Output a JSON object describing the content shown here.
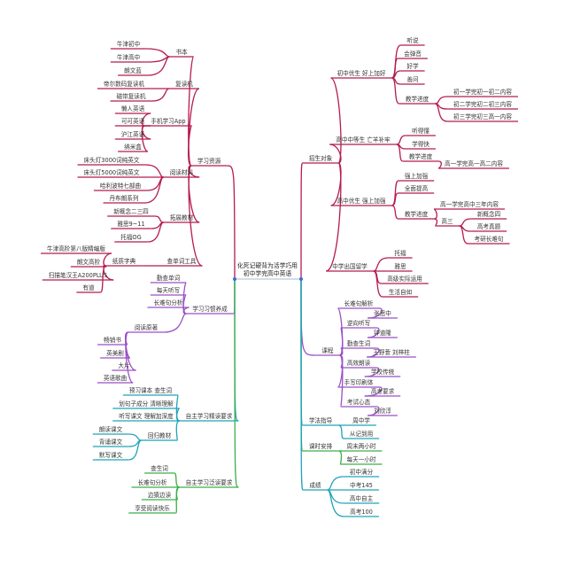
{
  "center": {
    "line1": "化死记硬背为活学巧用",
    "line2": "初中学完高中英语"
  },
  "colors": {
    "crimson": "#b51a52",
    "purple": "#9a4fc6",
    "cyan": "#1fa3b8",
    "green": "#3cae4a",
    "center_dot": "#3a6fd0"
  },
  "nodes": [
    {
      "id": "L1",
      "label": "学习资源",
      "parent": "c",
      "color": "crimson"
    },
    {
      "id": "L1a",
      "label": "书本",
      "parent": "L1",
      "color": "crimson"
    },
    {
      "id": "L1a1",
      "label": "牛津初中",
      "parent": "L1a",
      "color": "crimson"
    },
    {
      "id": "L1a2",
      "label": "牛津高中",
      "parent": "L1a",
      "color": "crimson"
    },
    {
      "id": "L1a3",
      "label": "朗文蓝",
      "parent": "L1a",
      "color": "crimson"
    },
    {
      "id": "L1b",
      "label": "复读机",
      "parent": "L1",
      "color": "crimson"
    },
    {
      "id": "L1b1",
      "label": "帝尔数码复读机",
      "parent": "L1b",
      "color": "crimson"
    },
    {
      "id": "L1b2",
      "label": "磁带复读机",
      "parent": "L1b",
      "color": "crimson"
    },
    {
      "id": "L1c",
      "label": "手机学习App",
      "parent": "L1",
      "color": "crimson"
    },
    {
      "id": "L1c1",
      "label": "懒人英语",
      "parent": "L1c",
      "color": "crimson"
    },
    {
      "id": "L1c2",
      "label": "可可英语",
      "parent": "L1c",
      "color": "crimson"
    },
    {
      "id": "L1c3",
      "label": "沪江英语",
      "parent": "L1c",
      "color": "crimson"
    },
    {
      "id": "L1c4",
      "label": "纳米盒",
      "parent": "L1c",
      "color": "crimson"
    },
    {
      "id": "L1d",
      "label": "阅读材料",
      "parent": "L1",
      "color": "crimson"
    },
    {
      "id": "L1d1",
      "label": "床头灯3000词纯英文",
      "parent": "L1d",
      "color": "crimson"
    },
    {
      "id": "L1d2",
      "label": "床头灯5000词纯英文",
      "parent": "L1d",
      "color": "crimson"
    },
    {
      "id": "L1d3",
      "label": "哈利波特七部曲",
      "parent": "L1d",
      "color": "crimson"
    },
    {
      "id": "L1d4",
      "label": "丹布朗系列",
      "parent": "L1d",
      "color": "crimson"
    },
    {
      "id": "L1e",
      "label": "拓展教材",
      "parent": "L1",
      "color": "crimson"
    },
    {
      "id": "L1e1",
      "label": "新概念二三四",
      "parent": "L1e",
      "color": "crimson"
    },
    {
      "id": "L1e2",
      "label": "雅思9~11",
      "parent": "L1e",
      "color": "crimson"
    },
    {
      "id": "L1e3",
      "label": "托福OG",
      "parent": "L1e",
      "color": "crimson"
    },
    {
      "id": "L1f",
      "label": "查单词工具",
      "parent": "L1",
      "color": "crimson"
    },
    {
      "id": "L1f1",
      "label": "纸质字典",
      "parent": "L1f",
      "color": "crimson"
    },
    {
      "id": "L1f11",
      "label": "牛津高阶第八版精编版",
      "parent": "L1f1",
      "color": "crimson"
    },
    {
      "id": "L1f12",
      "label": "朗文高阶",
      "parent": "L1f1",
      "color": "crimson"
    },
    {
      "id": "L1f13",
      "label": "扫描笔汉王A200PLUS",
      "parent": "L1f1",
      "color": "crimson"
    },
    {
      "id": "L1f14",
      "label": "有道",
      "parent": "L1f1",
      "color": "crimson"
    },
    {
      "id": "L2",
      "label": "学习习惯养成",
      "parent": "c",
      "color": "purple"
    },
    {
      "id": "L21",
      "label": "勤查单词",
      "parent": "L2",
      "color": "purple"
    },
    {
      "id": "L22",
      "label": "每天听写",
      "parent": "L2",
      "color": "purple"
    },
    {
      "id": "L23",
      "label": "长难句分析",
      "parent": "L2",
      "color": "purple"
    },
    {
      "id": "L24",
      "label": "阅读原著",
      "parent": "L2",
      "color": "purple"
    },
    {
      "id": "L241",
      "label": "畅销书",
      "parent": "L24",
      "color": "purple"
    },
    {
      "id": "L242",
      "label": "英美剧",
      "parent": "L24",
      "color": "purple"
    },
    {
      "id": "L243",
      "label": "大片",
      "parent": "L24",
      "color": "purple"
    },
    {
      "id": "L244",
      "label": "英语歌曲",
      "parent": "L24",
      "color": "purple"
    },
    {
      "id": "L3",
      "label": "自主学习精读要求",
      "parent": "c",
      "color": "cyan"
    },
    {
      "id": "L31",
      "label": "预习课本 查生词",
      "parent": "L3",
      "color": "cyan"
    },
    {
      "id": "L32",
      "label": "划句子成分 清晰理解",
      "parent": "L3",
      "color": "cyan"
    },
    {
      "id": "L33",
      "label": "听写课文 理解加深度",
      "parent": "L3",
      "color": "cyan"
    },
    {
      "id": "L34",
      "label": "回归教材",
      "parent": "L3",
      "color": "cyan"
    },
    {
      "id": "L341",
      "label": "朗读课文",
      "parent": "L34",
      "color": "cyan"
    },
    {
      "id": "L342",
      "label": "背诵课文",
      "parent": "L34",
      "color": "cyan"
    },
    {
      "id": "L343",
      "label": "默写课文",
      "parent": "L34",
      "color": "cyan"
    },
    {
      "id": "L4",
      "label": "自主学习泛读要求",
      "parent": "c",
      "color": "green"
    },
    {
      "id": "L41",
      "label": "查生词",
      "parent": "L4",
      "color": "green"
    },
    {
      "id": "L42",
      "label": "长难句分析",
      "parent": "L4",
      "color": "green"
    },
    {
      "id": "L43",
      "label": "边猜边读",
      "parent": "L4",
      "color": "green"
    },
    {
      "id": "L44",
      "label": "享受阅读快乐",
      "parent": "L4",
      "color": "green"
    },
    {
      "id": "R1",
      "label": "招生对象",
      "parent": "c",
      "color": "crimson"
    },
    {
      "id": "R1a",
      "label": "初中优生 好上加好",
      "parent": "R1",
      "color": "crimson"
    },
    {
      "id": "R1a1",
      "label": "听说",
      "parent": "R1a",
      "color": "crimson"
    },
    {
      "id": "R1a2",
      "label": "会弹音",
      "parent": "R1a",
      "color": "crimson"
    },
    {
      "id": "R1a3",
      "label": "好学",
      "parent": "R1a",
      "color": "crimson"
    },
    {
      "id": "R1a4",
      "label": "善问",
      "parent": "R1a",
      "color": "crimson"
    },
    {
      "id": "R1a5",
      "label": "教学进度",
      "parent": "R1a",
      "color": "crimson"
    },
    {
      "id": "R1a51",
      "label": "初一学完初一初二内容",
      "parent": "R1a5",
      "color": "crimson"
    },
    {
      "id": "R1a52",
      "label": "初二学完初二初三内容",
      "parent": "R1a5",
      "color": "crimson"
    },
    {
      "id": "R1a53",
      "label": "初三学完初三高一内容",
      "parent": "R1a5",
      "color": "crimson"
    },
    {
      "id": "R1b",
      "label": "高中中等生 亡羊补牢",
      "parent": "R1",
      "color": "crimson"
    },
    {
      "id": "R1b1",
      "label": "听得懂",
      "parent": "R1b",
      "color": "crimson"
    },
    {
      "id": "R1b2",
      "label": "学得快",
      "parent": "R1b",
      "color": "crimson"
    },
    {
      "id": "R1b3",
      "label": "教学进度",
      "parent": "R1b",
      "color": "crimson"
    },
    {
      "id": "R1b31",
      "label": "高一学完高一高二内容",
      "parent": "R1b3",
      "color": "crimson"
    },
    {
      "id": "R1c",
      "label": "高中优生 强上加强",
      "parent": "R1",
      "color": "crimson"
    },
    {
      "id": "R1c1",
      "label": "强上加强",
      "parent": "R1c",
      "color": "crimson"
    },
    {
      "id": "R1c2",
      "label": "全面提高",
      "parent": "R1c",
      "color": "crimson"
    },
    {
      "id": "R1c3",
      "label": "教学进度",
      "parent": "R1c",
      "color": "crimson"
    },
    {
      "id": "R1c31",
      "label": "高一学完高中三年内容",
      "parent": "R1c3",
      "color": "crimson"
    },
    {
      "id": "R1c32",
      "label": "高三",
      "parent": "R1c3",
      "color": "crimson"
    },
    {
      "id": "R1c321",
      "label": "新概念四",
      "parent": "R1c32",
      "color": "crimson"
    },
    {
      "id": "R1c322",
      "label": "高考真题",
      "parent": "R1c32",
      "color": "crimson"
    },
    {
      "id": "R1c323",
      "label": "考研长难句",
      "parent": "R1c32",
      "color": "crimson"
    },
    {
      "id": "R1d",
      "label": "中学出国留学",
      "parent": "R1",
      "color": "crimson"
    },
    {
      "id": "R1d1",
      "label": "托福",
      "parent": "R1d",
      "color": "crimson"
    },
    {
      "id": "R1d2",
      "label": "雅思",
      "parent": "R1d",
      "color": "crimson"
    },
    {
      "id": "R1d3",
      "label": "高级实际运用",
      "parent": "R1d",
      "color": "crimson"
    },
    {
      "id": "R1d4",
      "label": "生活自如",
      "parent": "R1d",
      "color": "crimson"
    },
    {
      "id": "R2",
      "label": "课程",
      "parent": "c",
      "color": "purple"
    },
    {
      "id": "R21",
      "label": "长难句解析",
      "parent": "R2",
      "color": "purple"
    },
    {
      "id": "R211",
      "label": "张思中",
      "parent": "R21",
      "color": "purple"
    },
    {
      "id": "R22",
      "label": "逆向听写",
      "parent": "R2",
      "color": "purple"
    },
    {
      "id": "R221",
      "label": "钟道隆",
      "parent": "R22",
      "color": "purple"
    },
    {
      "id": "R23",
      "label": "勤查生词",
      "parent": "R2",
      "color": "purple"
    },
    {
      "id": "R231",
      "label": "王野萱 刘梓柱",
      "parent": "R23",
      "color": "purple"
    },
    {
      "id": "R24",
      "label": "高效朗读",
      "parent": "R2",
      "color": "purple"
    },
    {
      "id": "R241",
      "label": "学校传统",
      "parent": "R24",
      "color": "purple"
    },
    {
      "id": "R25",
      "label": "手写印刷体",
      "parent": "R2",
      "color": "purple"
    },
    {
      "id": "R251",
      "label": "高考要求",
      "parent": "R25",
      "color": "purple"
    },
    {
      "id": "R26",
      "label": "考试心态",
      "parent": "R2",
      "color": "purple"
    },
    {
      "id": "R261",
      "label": "刘欣淳",
      "parent": "R26",
      "color": "purple"
    },
    {
      "id": "R3",
      "label": "学法指导",
      "parent": "c",
      "color": "cyan"
    },
    {
      "id": "R31",
      "label": "周中学",
      "parent": "R3",
      "color": "cyan"
    },
    {
      "id": "R32",
      "label": "从记到用",
      "parent": "R3",
      "color": "cyan"
    },
    {
      "id": "R4",
      "label": "课时安排",
      "parent": "c",
      "color": "green"
    },
    {
      "id": "R41",
      "label": "周末两小时",
      "parent": "R4",
      "color": "green"
    },
    {
      "id": "R42",
      "label": "每天一小时",
      "parent": "R4",
      "color": "green"
    },
    {
      "id": "R5",
      "label": "成绩",
      "parent": "c",
      "color": "cyan"
    },
    {
      "id": "R51",
      "label": "初中满分",
      "parent": "R5",
      "color": "cyan"
    },
    {
      "id": "R52",
      "label": "中考145",
      "parent": "R5",
      "color": "cyan"
    },
    {
      "id": "R53",
      "label": "高中自主",
      "parent": "R5",
      "color": "cyan"
    },
    {
      "id": "R54",
      "label": "高考100",
      "parent": "R5",
      "color": "cyan"
    }
  ]
}
